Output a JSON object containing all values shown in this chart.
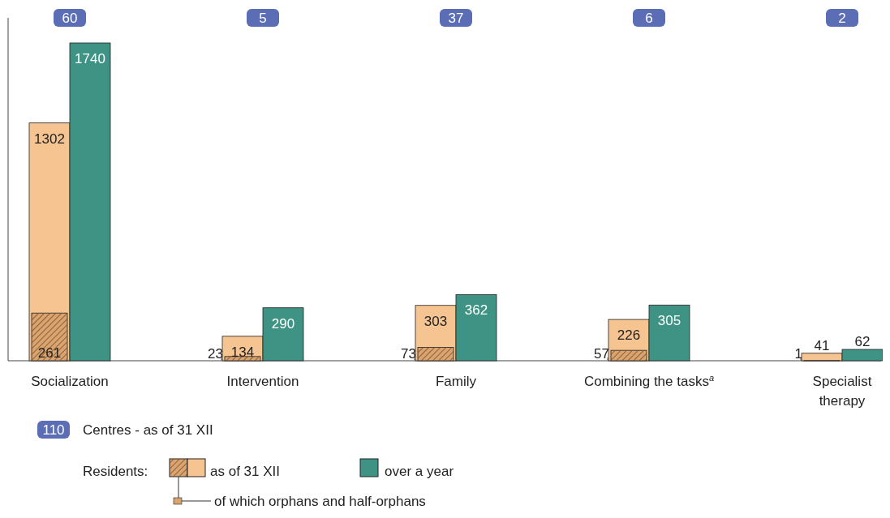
{
  "chart_data": {
    "type": "bar",
    "categories": [
      "Socialization",
      "Intervention",
      "Family",
      "Combining the tasks$^{a}$",
      "Specialist therapy"
    ],
    "series": [
      {
        "name": "of which orphans and half-orphans",
        "color": "#d9a46f",
        "values": [
          261,
          23,
          73,
          57,
          1
        ],
        "value_labels": [
          "261",
          "23",
          "73",
          "57",
          "1"
        ]
      },
      {
        "name": "as of 31 XII",
        "color": "#f5c491",
        "values": [
          1302,
          134,
          303,
          226,
          41
        ],
        "value_labels": [
          "1302",
          "134",
          "303",
          "226",
          "41"
        ]
      },
      {
        "name": "over a year",
        "color": "#3e9384",
        "values": [
          1740,
          290,
          362,
          305,
          62
        ],
        "value_labels": [
          "1740",
          "290",
          "362",
          "305",
          "62"
        ]
      }
    ],
    "legend_title": "Residents:",
    "legend": "bottom",
    "annotations": [
      "60",
      "5",
      "37",
      "6",
      "2",
      "110",
      "Centres - as of 31 XII"
    ]
  }
}
